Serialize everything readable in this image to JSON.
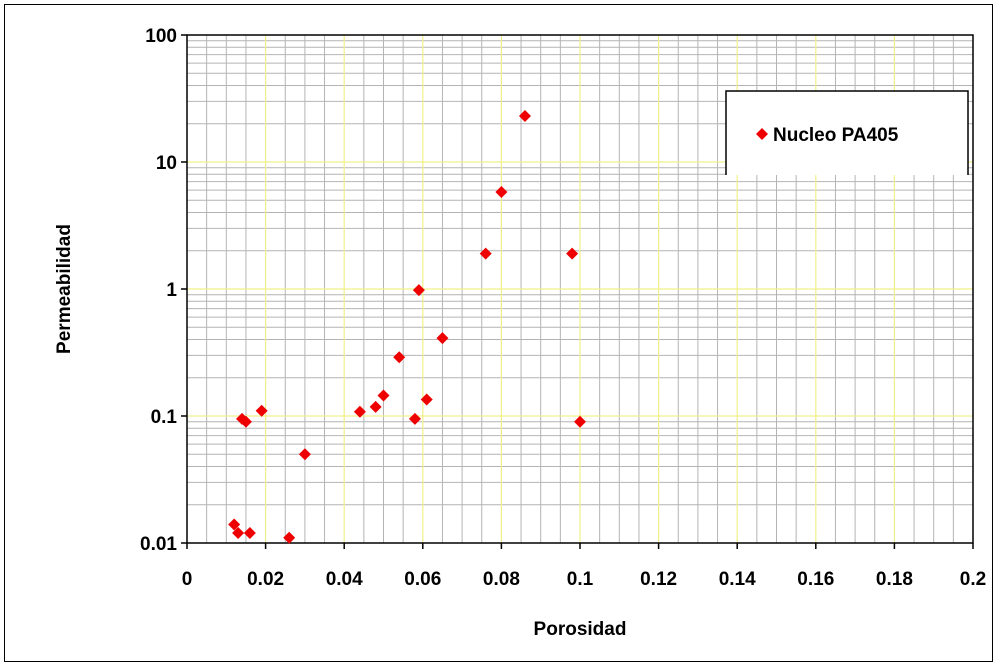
{
  "chart_data": {
    "type": "scatter",
    "title": "",
    "xlabel": "Porosidad",
    "ylabel": "Permeabilidad",
    "xlim": [
      0,
      0.2
    ],
    "ylim": [
      0.01,
      100
    ],
    "y_scale": "log",
    "grid": true,
    "legend_position": "top-right",
    "x_ticks": [
      "0",
      "0.02",
      "0.04",
      "0.06",
      "0.08",
      "0.1",
      "0.12",
      "0.14",
      "0.16",
      "0.18",
      "0.2"
    ],
    "y_ticks": [
      "0.01",
      "0.1",
      "1",
      "10",
      "100"
    ],
    "colors": {
      "marker": "#ee0000",
      "major_grid": "#f0f08a",
      "minor_grid": "#b4b4b4"
    },
    "series": [
      {
        "name": "Nucleo PA405",
        "marker": "diamond",
        "points": [
          {
            "x": 0.012,
            "y": 0.014
          },
          {
            "x": 0.013,
            "y": 0.012
          },
          {
            "x": 0.016,
            "y": 0.012
          },
          {
            "x": 0.026,
            "y": 0.011
          },
          {
            "x": 0.014,
            "y": 0.095
          },
          {
            "x": 0.015,
            "y": 0.09
          },
          {
            "x": 0.019,
            "y": 0.11
          },
          {
            "x": 0.03,
            "y": 0.05
          },
          {
            "x": 0.044,
            "y": 0.108
          },
          {
            "x": 0.048,
            "y": 0.118
          },
          {
            "x": 0.05,
            "y": 0.145
          },
          {
            "x": 0.054,
            "y": 0.29
          },
          {
            "x": 0.058,
            "y": 0.095
          },
          {
            "x": 0.059,
            "y": 0.98
          },
          {
            "x": 0.061,
            "y": 0.135
          },
          {
            "x": 0.065,
            "y": 0.41
          },
          {
            "x": 0.076,
            "y": 1.9
          },
          {
            "x": 0.08,
            "y": 5.8
          },
          {
            "x": 0.086,
            "y": 23
          },
          {
            "x": 0.098,
            "y": 1.9
          },
          {
            "x": 0.1,
            "y": 0.09
          }
        ]
      }
    ]
  }
}
